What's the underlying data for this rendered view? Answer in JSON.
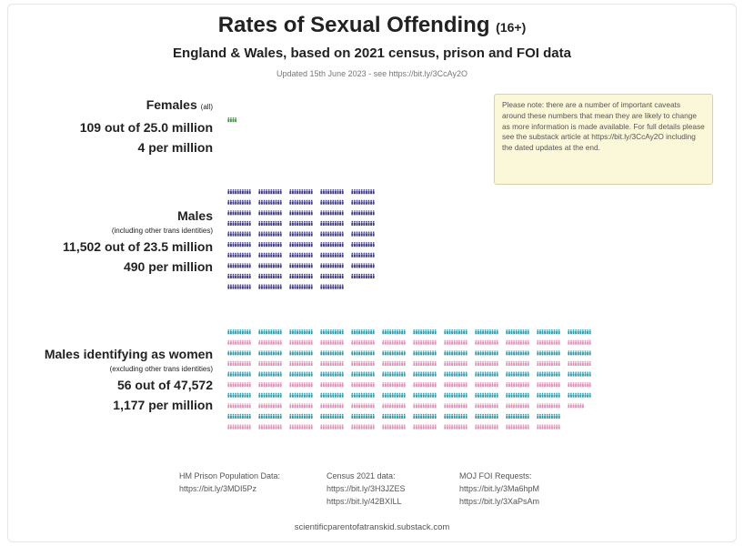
{
  "header": {
    "title": "Rates of Sexual Offending",
    "title_suffix": "(16+)",
    "subtitle": "England & Wales, based on 2021 census, prison and FOI data",
    "updated": "Updated 15th June 2023 - see https://bit.ly/3CcAy2O"
  },
  "note": "Please note: there are a number of important caveats around these numbers that mean they are likely to change as more information is made available. For full details please see the substack article at https://bit.ly/3CcAy2O including the dated updates at the end.",
  "groups": [
    {
      "name": "Females",
      "name_qualifier": "(all)",
      "count_line": "109 out of 25.0 million",
      "rate_line": "4 per million"
    },
    {
      "name": "Males",
      "name_qualifier": "(including other trans identities)",
      "count_line": "11,502 out of 23.5 million",
      "rate_line": "490 per million"
    },
    {
      "name": "Males identifying as women",
      "name_qualifier": "(excluding other trans identities)",
      "count_line": "56 out of 47,572",
      "rate_line": "1,177 per million"
    }
  ],
  "sources": [
    {
      "label": "HM Prison Population Data:",
      "links": [
        "https://bit.ly/3MDI5Pz"
      ]
    },
    {
      "label": "Census 2021 data:",
      "links": [
        "https://bit.ly/3H3JZES",
        "https://bit.ly/42BXILL"
      ]
    },
    {
      "label": "MOJ FOI Requests:",
      "links": [
        "https://bit.ly/3Ma6hpM",
        "https://bit.ly/3XaPsAm"
      ]
    }
  ],
  "footer": "scientificparentofatranskid.substack.com",
  "chart_data": {
    "type": "pictogram",
    "unit": "one figure per person per million",
    "series": [
      {
        "rate_per_million": 4,
        "color": "#3f9e3f"
      },
      {
        "rate_per_million": 490,
        "color": "#3e3a8a"
      },
      {
        "rate_per_million": 1177,
        "colors": [
          "#2e9db0",
          "#e58fb6"
        ]
      }
    ]
  },
  "colors": {
    "females": "#3f9e3f",
    "males": "#3e3a8a",
    "trans_blue": "#2e9db0",
    "trans_pink": "#e58fb6",
    "note_bg": "#fbf7d9"
  }
}
